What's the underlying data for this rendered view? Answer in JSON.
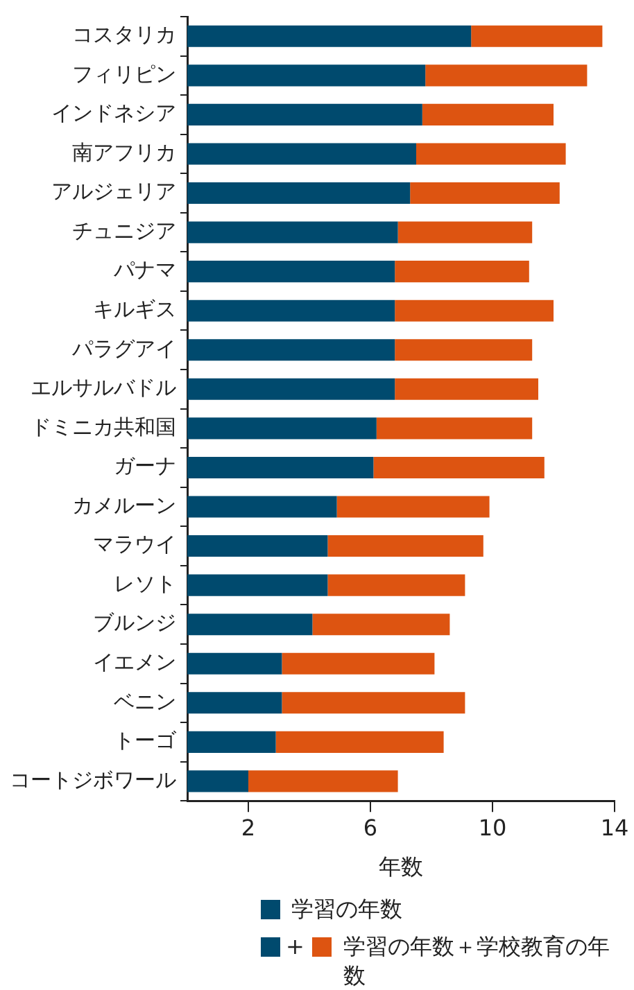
{
  "chart_data": {
    "type": "bar",
    "orientation": "horizontal",
    "stacked": true,
    "categories": [
      "コスタリカ",
      "フィリピン",
      "インドネシア",
      "南アフリカ",
      "アルジェリア",
      "チュニジア",
      "パナマ",
      "キルギス",
      "パラグアイ",
      "エルサルバドル",
      "ドミニカ共和国",
      "ガーナ",
      "カメルーン",
      "マラウイ",
      "レソト",
      "ブルンジ",
      "イエメン",
      "ベニン",
      "トーゴ",
      "コートジボワール"
    ],
    "series": [
      {
        "name": "学習の年数",
        "color": "#004a6e",
        "values": [
          9.3,
          7.8,
          7.7,
          7.5,
          7.3,
          6.9,
          6.8,
          6.8,
          6.8,
          6.8,
          6.2,
          6.1,
          4.9,
          4.6,
          4.6,
          4.1,
          3.1,
          3.1,
          2.9,
          2.0
        ]
      },
      {
        "name": "学習の年数＋学校教育の年数",
        "color": "#dd5411",
        "values": [
          4.3,
          5.3,
          4.3,
          4.9,
          4.9,
          4.4,
          4.4,
          5.2,
          4.5,
          4.7,
          5.1,
          5.6,
          5.0,
          5.1,
          4.5,
          4.5,
          5.0,
          6.0,
          5.5,
          4.9
        ]
      }
    ],
    "xlabel": "年数",
    "xlim": [
      0,
      14
    ],
    "xticks": [
      2,
      6,
      10,
      14
    ],
    "grid": false,
    "legend": "bottom",
    "annotations": [
      "+"
    ]
  }
}
